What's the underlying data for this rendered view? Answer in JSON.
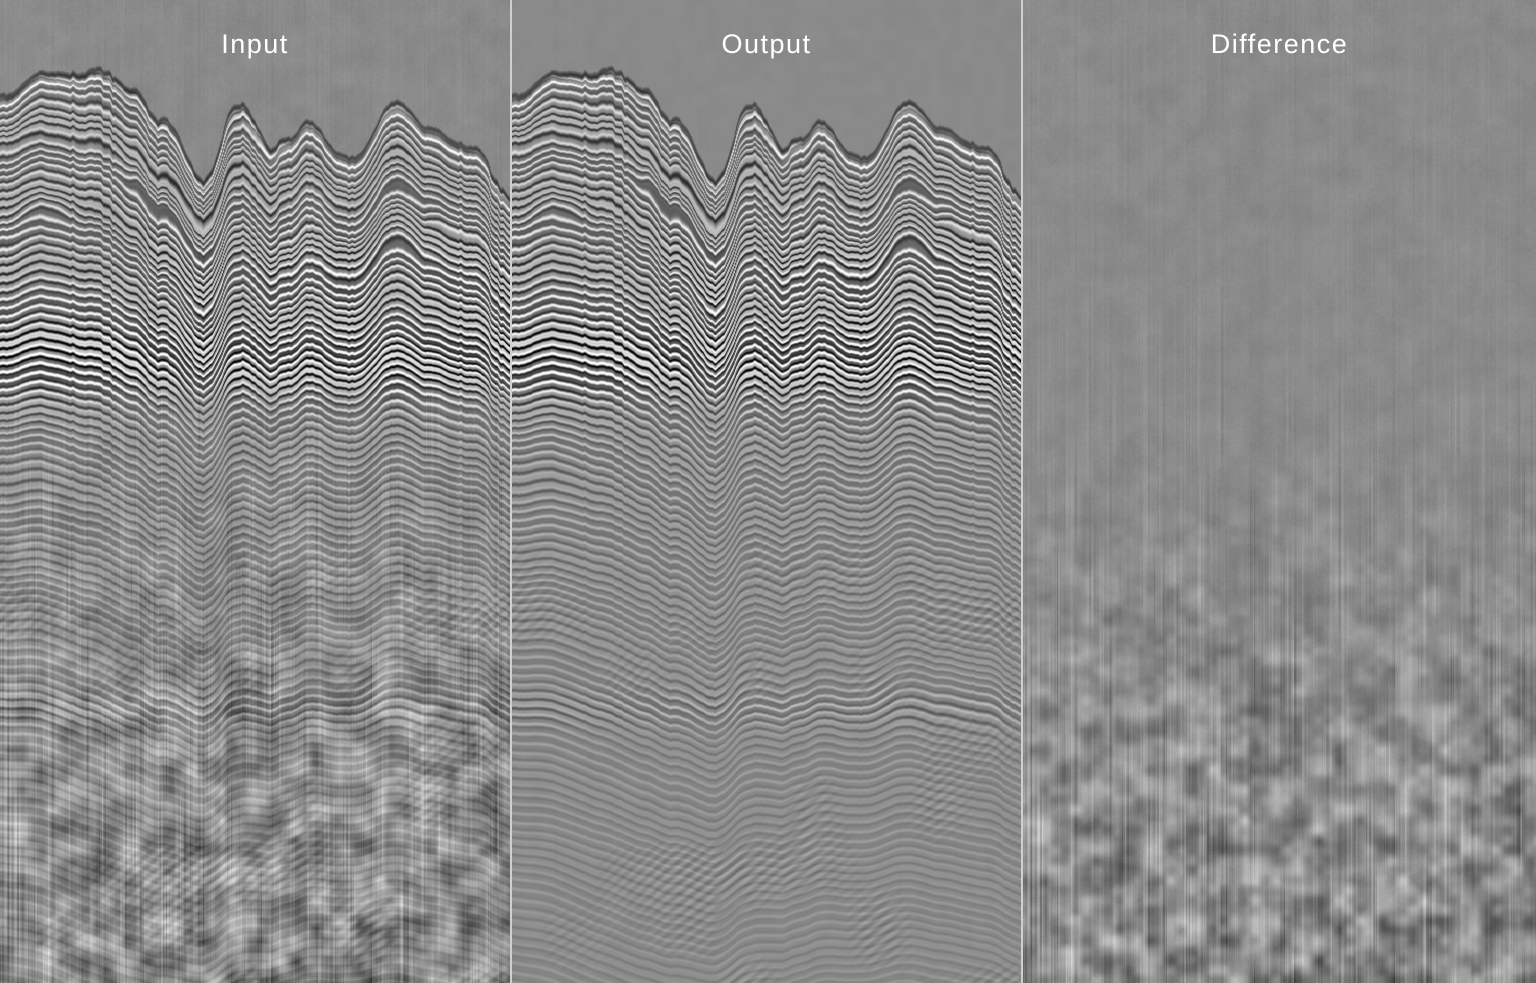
{
  "figure": {
    "title": "seismic-denoising-comparison",
    "panels": [
      {
        "id": "input",
        "label": "Input"
      },
      {
        "id": "output",
        "label": "Output"
      },
      {
        "id": "difference",
        "label": "Difference"
      }
    ],
    "style": {
      "background_gray": "#8a8a8a",
      "divider_color": "#cfcfcf",
      "label_color": "#ffffff"
    }
  }
}
